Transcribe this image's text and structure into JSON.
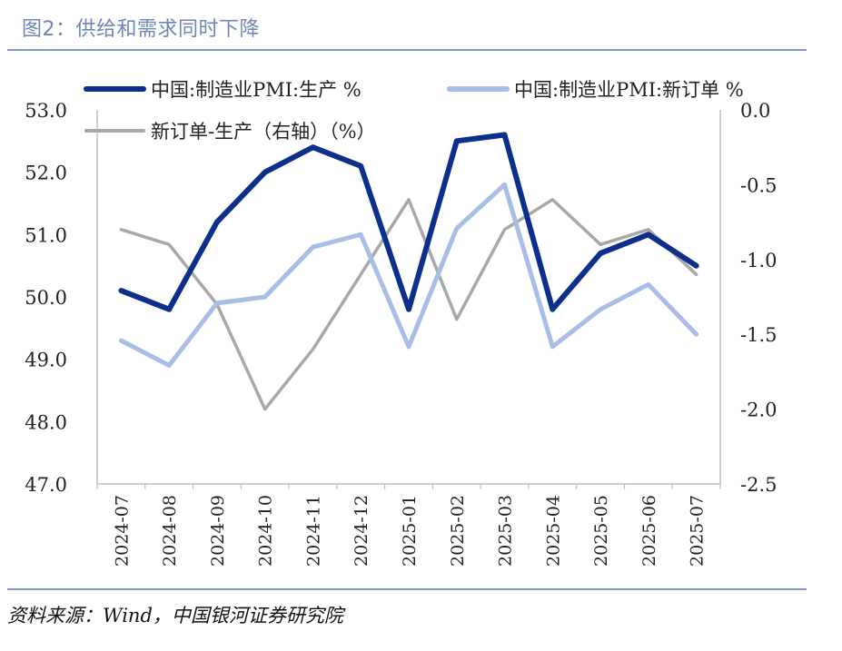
{
  "figure": {
    "title": "图2：供给和需求同时下降",
    "source": "资料来源：Wind，中国银河证券研究院"
  },
  "colors": {
    "production": "#0b2f8a",
    "new_orders": "#a9bee6",
    "diff": "#a8a8a8",
    "axis": "#bfbfbf",
    "title": "#6f86b6",
    "rule": "#8197c4"
  },
  "chart_data": {
    "type": "line",
    "x": [
      "2024-07",
      "2024-08",
      "2024-09",
      "2024-10",
      "2024-11",
      "2024-12",
      "2025-01",
      "2025-02",
      "2025-03",
      "2025-04",
      "2025-05",
      "2025-06",
      "2025-07"
    ],
    "left_axis": {
      "ylim": [
        47.0,
        53.0
      ],
      "ticks": [
        "53.0",
        "52.0",
        "51.0",
        "50.0",
        "49.0",
        "48.0",
        "47.0"
      ]
    },
    "right_axis": {
      "ylim": [
        -2.5,
        0.0
      ],
      "ticks": [
        "0.0",
        "-0.5",
        "-1.0",
        "-1.5",
        "-2.0",
        "-2.5"
      ]
    },
    "series": [
      {
        "name": "中国:制造业PMI:生产 %",
        "axis": "left",
        "values": [
          50.1,
          49.8,
          51.2,
          52.0,
          52.4,
          52.1,
          49.8,
          52.5,
          52.6,
          49.8,
          50.7,
          51.0,
          50.5
        ]
      },
      {
        "name": "中国:制造业PMI:新订单 %",
        "axis": "left",
        "values": [
          49.3,
          48.9,
          49.9,
          50.0,
          50.8,
          51.0,
          49.2,
          51.1,
          51.8,
          49.2,
          49.8,
          50.2,
          49.4
        ]
      },
      {
        "name": "新订单-生产（右轴）（%）",
        "axis": "right",
        "values": [
          -0.8,
          -0.9,
          -1.3,
          -2.0,
          -1.6,
          -1.1,
          -0.6,
          -1.4,
          -0.8,
          -0.6,
          -0.9,
          -0.8,
          -1.1
        ]
      }
    ],
    "grid": false,
    "legend": "top"
  }
}
